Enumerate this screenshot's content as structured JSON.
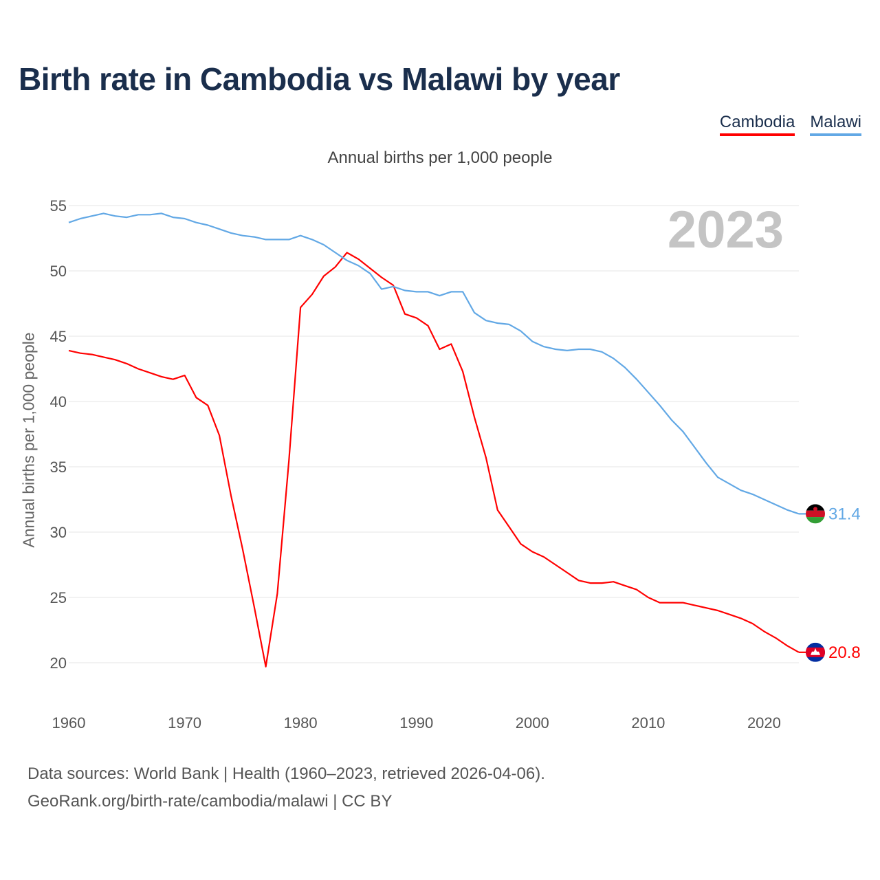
{
  "title": "Birth rate in Cambodia vs Malawi by year",
  "subtitle": "Annual births per 1,000 people",
  "current_year": "2023",
  "legend": [
    {
      "label": "Cambodia",
      "color": "#ff0000"
    },
    {
      "label": "Malawi",
      "color": "#62a8e5"
    }
  ],
  "footer": {
    "source": "Data sources: World Bank | Health (1960–2023, retrieved 2026-04-06).",
    "credit": "GeoRank.org/birth-rate/cambodia/malawi | CC BY"
  },
  "chart_data": {
    "type": "line",
    "title": "Birth rate in Cambodia vs Malawi by year",
    "xlabel": "",
    "ylabel": "Annual births per 1,000 people",
    "xlim": [
      1960,
      2023
    ],
    "ylim": [
      20,
      55
    ],
    "x_ticks": [
      1960,
      1970,
      1980,
      1990,
      2000,
      2010,
      2020
    ],
    "y_ticks": [
      20,
      25,
      30,
      35,
      40,
      45,
      50,
      55
    ],
    "x": [
      1960,
      1961,
      1962,
      1963,
      1964,
      1965,
      1966,
      1967,
      1968,
      1969,
      1970,
      1971,
      1972,
      1973,
      1974,
      1975,
      1976,
      1977,
      1978,
      1979,
      1980,
      1981,
      1982,
      1983,
      1984,
      1985,
      1986,
      1987,
      1988,
      1989,
      1990,
      1991,
      1992,
      1993,
      1994,
      1995,
      1996,
      1997,
      1998,
      1999,
      2000,
      2001,
      2002,
      2003,
      2004,
      2005,
      2006,
      2007,
      2008,
      2009,
      2010,
      2011,
      2012,
      2013,
      2014,
      2015,
      2016,
      2017,
      2018,
      2019,
      2020,
      2021,
      2022,
      2023
    ],
    "series": [
      {
        "name": "Cambodia",
        "color": "#ff0000",
        "end_label": "20.8",
        "values": [
          43.9,
          43.7,
          43.6,
          43.4,
          43.2,
          42.9,
          42.5,
          42.2,
          41.9,
          41.7,
          42.0,
          40.3,
          39.7,
          37.4,
          32.8,
          28.7,
          24.3,
          19.7,
          25.3,
          35.5,
          47.2,
          48.2,
          49.6,
          50.3,
          51.4,
          50.9,
          50.2,
          49.5,
          48.9,
          46.7,
          46.4,
          45.8,
          44.0,
          44.4,
          42.3,
          38.8,
          35.7,
          31.7,
          30.4,
          29.1,
          28.5,
          28.1,
          27.5,
          26.9,
          26.3,
          26.1,
          26.1,
          26.2,
          25.9,
          25.6,
          25.0,
          24.6,
          24.6,
          24.6,
          24.4,
          24.2,
          24.0,
          23.7,
          23.4,
          23.0,
          22.4,
          21.9,
          21.3,
          20.8
        ]
      },
      {
        "name": "Malawi",
        "color": "#62a8e5",
        "end_label": "31.4",
        "values": [
          53.7,
          54.0,
          54.2,
          54.4,
          54.2,
          54.1,
          54.3,
          54.3,
          54.4,
          54.1,
          54.0,
          53.7,
          53.5,
          53.2,
          52.9,
          52.7,
          52.6,
          52.4,
          52.4,
          52.4,
          52.7,
          52.4,
          52.0,
          51.4,
          50.8,
          50.4,
          49.8,
          48.6,
          48.8,
          48.5,
          48.4,
          48.4,
          48.1,
          48.4,
          48.4,
          46.8,
          46.2,
          46.0,
          45.9,
          45.4,
          44.6,
          44.2,
          44.0,
          43.9,
          44.0,
          44.0,
          43.8,
          43.3,
          42.6,
          41.7,
          40.7,
          39.7,
          38.6,
          37.7,
          36.5,
          35.3,
          34.2,
          33.7,
          33.2,
          32.9,
          32.5,
          32.1,
          31.7,
          31.4
        ]
      }
    ]
  }
}
